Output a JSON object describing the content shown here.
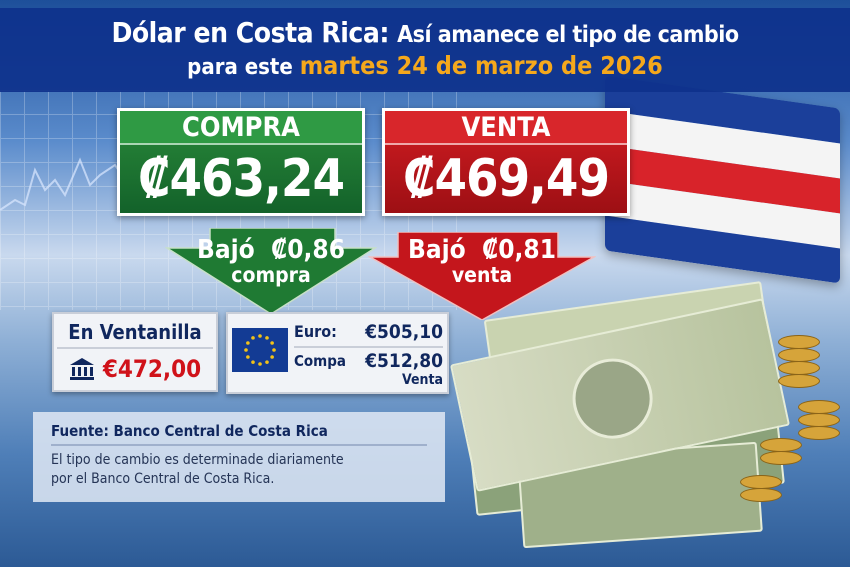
{
  "header": {
    "title_main": "Dólar en Costa Rica:",
    "title_sub": "Así amanece el tipo de cambio",
    "line2_prefix": "para este",
    "date": "martes 24 de marzo de 2026"
  },
  "compra": {
    "label": "COMPRA",
    "value": "₡463,24"
  },
  "venta": {
    "label": "VENTA",
    "value": "₡469,49"
  },
  "change_compra": {
    "text": "Bajó",
    "amount": "₡0,86",
    "type": "compra"
  },
  "change_venta": {
    "text": "Bajó",
    "amount": "₡0,81",
    "type": "venta"
  },
  "ventanilla": {
    "title": "En Ventanilla",
    "value": "€472,00"
  },
  "euro": {
    "label1": "Euro:",
    "value1": "€505,10",
    "label2": "Compa",
    "value2": "€512,80",
    "label3": "Venta"
  },
  "source": {
    "title": "Fuente: Banco Central de Costa Rica",
    "text1": "El tipo de cambio es determinade diariamente",
    "text2": "por el Banco Central de Costa Rica."
  },
  "colors": {
    "green": "#1f7a33",
    "red": "#c4161c",
    "navy": "#0e328c",
    "gold": "#f5a81c"
  },
  "icons": [
    "bank-icon",
    "eu-flag-icon",
    "costa-rica-flag",
    "money-stack",
    "coins"
  ]
}
